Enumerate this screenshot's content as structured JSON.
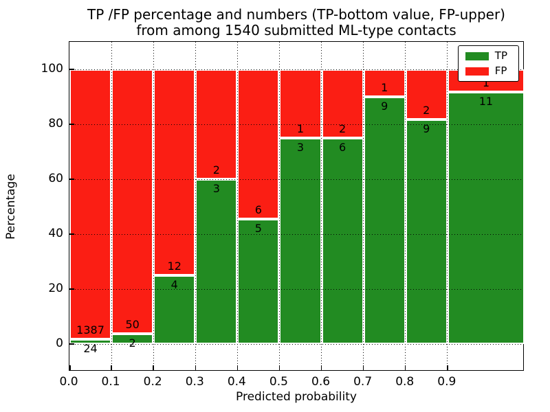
{
  "chart_data": {
    "type": "bar",
    "stacked": true,
    "orientation": "vertical",
    "title_line1": "TP /FP percentage and numbers (TP-bottom value, FP-upper)",
    "title_line2": "from among 1540 submitted ML-type contacts",
    "xlabel": "Predicted probability",
    "ylabel": "Percentage",
    "xlim": [
      0,
      1.0836
    ],
    "ylim": [
      -10,
      110
    ],
    "xtick_labels": [
      "0.0",
      "0.1",
      "0.2",
      "0.3",
      "0.4",
      "0.5",
      "0.6",
      "0.7",
      "0.8",
      "0.9"
    ],
    "ytick_labels": [
      "0",
      "20",
      "40",
      "60",
      "80",
      "100"
    ],
    "ytick_values": [
      0,
      20,
      40,
      60,
      80,
      100
    ],
    "grid": "dotted black, both axes, drawn over bars",
    "total_contacts": 1540,
    "colors": {
      "tp": "#228B22",
      "fp": "#FB1E14",
      "bar_edge": "#ffffff",
      "text": "#000000",
      "background": "#ffffff"
    },
    "legend": {
      "position": "upper right",
      "entries": [
        {
          "label": "TP",
          "color": "#228B22"
        },
        {
          "label": "FP",
          "color": "#FB1E14"
        }
      ]
    },
    "bins": [
      {
        "range": [
          0.0,
          0.1
        ],
        "tp": 24,
        "fp": 1387,
        "tp_pct": 1.7
      },
      {
        "range": [
          0.1,
          0.2
        ],
        "tp": 2,
        "fp": 50,
        "tp_pct": 3.85
      },
      {
        "range": [
          0.2,
          0.3
        ],
        "tp": 4,
        "fp": 12,
        "tp_pct": 25.0
      },
      {
        "range": [
          0.3,
          0.4
        ],
        "tp": 3,
        "fp": 2,
        "tp_pct": 60.0
      },
      {
        "range": [
          0.4,
          0.5
        ],
        "tp": 5,
        "fp": 6,
        "tp_pct": 45.45
      },
      {
        "range": [
          0.5,
          0.6
        ],
        "tp": 3,
        "fp": 1,
        "tp_pct": 75.0
      },
      {
        "range": [
          0.6,
          0.7
        ],
        "tp": 6,
        "fp": 2,
        "tp_pct": 75.0
      },
      {
        "range": [
          0.7,
          0.8
        ],
        "tp": 9,
        "fp": 1,
        "tp_pct": 90.0
      },
      {
        "range": [
          0.8,
          0.9
        ],
        "tp": 9,
        "fp": 2,
        "tp_pct": 81.82
      },
      {
        "range": [
          0.9,
          1.0
        ],
        "tp": 11,
        "fp": 1,
        "tp_pct": 91.67
      }
    ],
    "bar_label_note": "FP count printed above segment boundary, TP count printed below segment boundary"
  }
}
